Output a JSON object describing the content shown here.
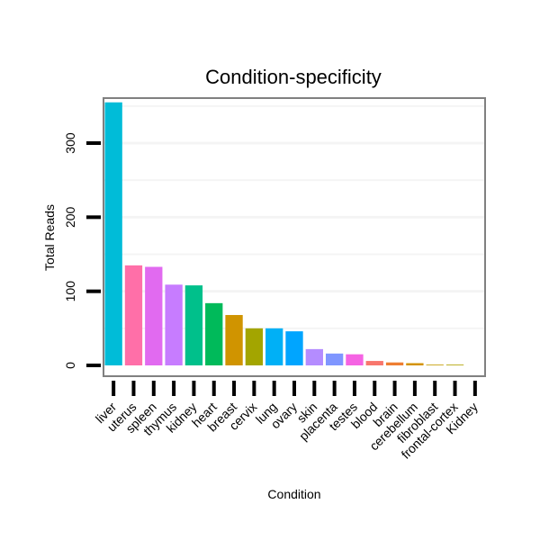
{
  "chart_data": {
    "type": "bar",
    "title": "Condition-specificity",
    "xlabel": "Condition",
    "ylabel": "Total Reads",
    "categories": [
      "liver",
      "uterus",
      "spleen",
      "thymus",
      "kidney",
      "heart",
      "breast",
      "cervix",
      "lung",
      "ovary",
      "skin",
      "placenta",
      "testes",
      "blood",
      "brain",
      "cerebellum",
      "fibroblast",
      "frontal-cortex",
      "Kidney"
    ],
    "values": [
      355,
      135,
      133,
      109,
      108,
      84,
      68,
      50,
      50,
      46,
      22,
      16,
      15,
      6,
      4,
      3,
      1,
      1,
      0
    ],
    "colors": [
      "#00bcd8",
      "#ff6fa8",
      "#e16af0",
      "#c77cff",
      "#00c08b",
      "#00ba5a",
      "#d09400",
      "#a3a500",
      "#00b0f6",
      "#00a5ff",
      "#b48cff",
      "#7f96ff",
      "#f563e3",
      "#f8766d",
      "#ee7e32",
      "#d39200",
      "#c49a00",
      "#b0a200",
      "#9aa800"
    ],
    "ylim": [
      0,
      370
    ],
    "yticks": [
      0,
      100,
      200,
      300
    ],
    "grid": true
  }
}
